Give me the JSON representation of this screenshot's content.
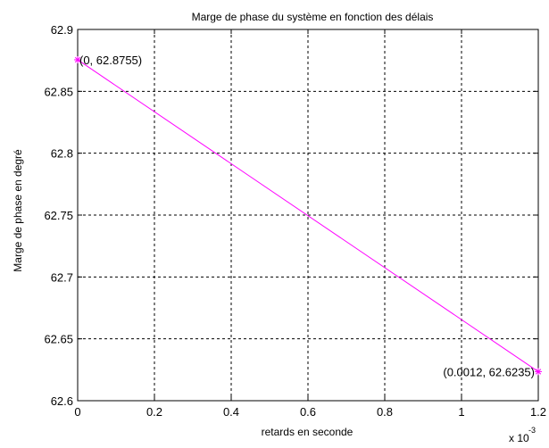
{
  "chart_data": {
    "type": "line",
    "title": "Marge de phase du système en fonction des délais",
    "xlabel": "retards en seconde",
    "ylabel": "Marge de phase en degré",
    "x_multiplier_label": "x 10",
    "x_multiplier_exponent": "-3",
    "xlim": [
      0,
      1.2
    ],
    "ylim": [
      62.6,
      62.9
    ],
    "xticks": [
      0,
      0.2,
      0.4,
      0.6,
      0.8,
      1,
      1.2
    ],
    "xtick_labels": [
      "0",
      "0.2",
      "0.4",
      "0.6",
      "0.8",
      "1",
      "1.2"
    ],
    "yticks": [
      62.6,
      62.65,
      62.7,
      62.75,
      62.8,
      62.85,
      62.9
    ],
    "ytick_labels": [
      "62.6",
      "62.65",
      "62.7",
      "62.75",
      "62.8",
      "62.85",
      "62.9"
    ],
    "grid": true,
    "series": [
      {
        "x": [
          0,
          1.2
        ],
        "y": [
          62.8755,
          62.6235
        ],
        "color": "#ff00ff",
        "marker": "asterisk"
      }
    ],
    "annotations": [
      {
        "text": "(0, 62.8755)",
        "x": 0,
        "y": 62.8755,
        "anchor": "start"
      },
      {
        "text": "(0.0012, 62.6235)",
        "x": 1.2,
        "y": 62.6235,
        "anchor": "end"
      }
    ]
  }
}
